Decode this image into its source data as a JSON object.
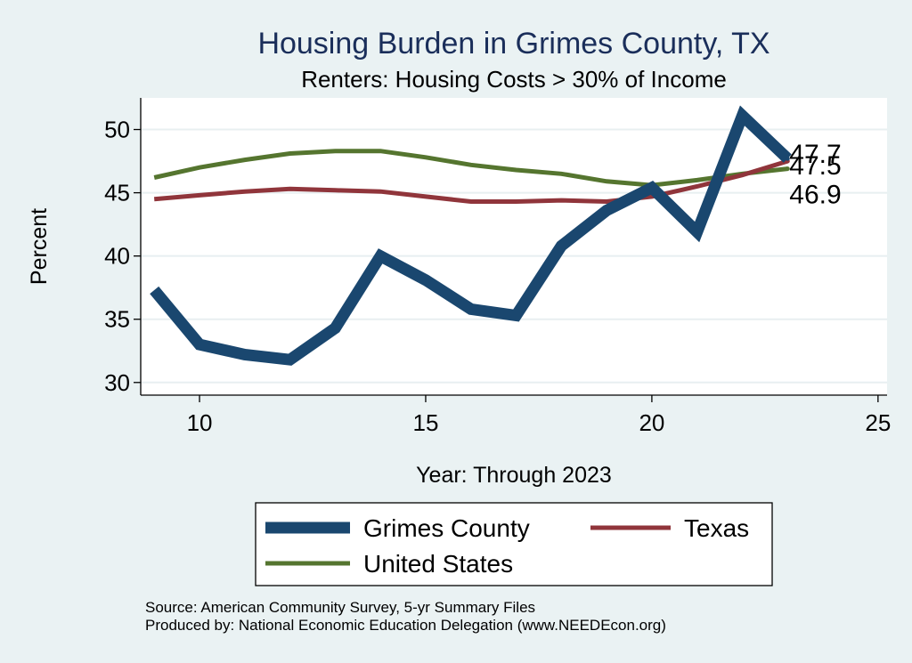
{
  "chart_data": {
    "type": "line",
    "title": "Housing Burden in Grimes County, TX",
    "subtitle": "Renters: Housing Costs > 30% of Income",
    "xlabel": "Year: Through 2023",
    "ylabel": "Percent",
    "xlim": [
      8.7,
      25.2
    ],
    "ylim": [
      29.0,
      52.5
    ],
    "xticks": [
      10,
      15,
      20,
      25
    ],
    "yticks": [
      30,
      35,
      40,
      45,
      50
    ],
    "grid": true,
    "legend_position": "bottom",
    "x": [
      9,
      10,
      11,
      12,
      13,
      14,
      15,
      16,
      17,
      18,
      19,
      20,
      21,
      22,
      23
    ],
    "series": [
      {
        "name": "Grimes County",
        "color": "#1a476f",
        "values": [
          37.3,
          33.0,
          32.2,
          31.8,
          34.3,
          40.0,
          38.1,
          35.8,
          35.3,
          40.8,
          43.6,
          45.4,
          41.9,
          51.1,
          47.7
        ],
        "end_label": "47.7"
      },
      {
        "name": "Texas",
        "color": "#90353b",
        "values": [
          44.5,
          44.8,
          45.1,
          45.3,
          45.2,
          45.1,
          44.7,
          44.3,
          44.3,
          44.4,
          44.3,
          44.7,
          45.5,
          46.4,
          47.5
        ],
        "end_label": "47.5"
      },
      {
        "name": "United States",
        "color": "#55752f",
        "values": [
          46.2,
          47.0,
          47.6,
          48.1,
          48.3,
          48.3,
          47.8,
          47.2,
          46.8,
          46.5,
          45.9,
          45.6,
          46.0,
          46.5,
          46.9
        ],
        "end_label": "46.9"
      }
    ],
    "notes": [
      "Source: American Community Survey, 5-yr Summary Files",
      "Produced by: National Economic Education Delegation (www.NEEDEcon.org)"
    ]
  }
}
